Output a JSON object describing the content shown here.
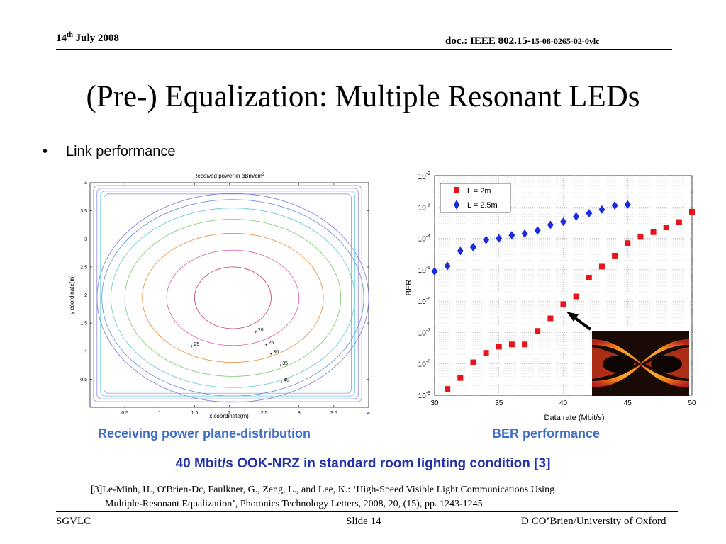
{
  "header": {
    "date_day": "14",
    "date_suffix": "th",
    "date_rest": " July 2008",
    "doc_prefix": "doc.: IEEE 802.15-",
    "doc_number": "15-08-0265-02-0vlc"
  },
  "slide": {
    "title": "(Pre-) Equalization: Multiple Resonant LEDs",
    "bullet_symbol": "•",
    "bullet_text": "Link performance"
  },
  "captions": {
    "left": "Receiving power plane-distribution",
    "right": "BER performance",
    "subtitle": "40 Mbit/s OOK-NRZ in standard room lighting condition [3]"
  },
  "reference": {
    "line1": "[3]Le-Minh, H., O'Brien-Dc, Faulkner, G., Zeng, L., and Lee, K.: ‘High-Speed Visible Light Communications Using",
    "line2": "Multiple-Resonant Equalization’, Photonics Technology Letters, 2008, 20, (15), pp. 1243-1245"
  },
  "footer": {
    "left": "SGVLC",
    "center": "Slide 14",
    "right": "D CO’Brien/University of Oxford"
  },
  "colors": {
    "caption": "#3d6ec9",
    "subtitle": "#2233aa",
    "series_2m": "#e8141b",
    "series_25m": "#1a2be0"
  },
  "icons": [
    "arrow-icon",
    "eye-diagram-image"
  ],
  "chart_data": [
    {
      "type": "contour",
      "title": "Received power in dBm/cm",
      "title_sup": "2",
      "xlabel": "x coordinate(m)",
      "ylabel": "y coordinate(m)",
      "xlim": [
        0,
        4
      ],
      "ylim": [
        0,
        4
      ],
      "xticks": [
        "0.5",
        "1",
        "1.5",
        "2",
        "2.5",
        "3",
        "3.5",
        "4"
      ],
      "yticks": [
        "0.5",
        "1",
        "1.5",
        "2",
        "2.5",
        "3",
        "3.5",
        "4"
      ],
      "contour_labels": [
        {
          "x": 2.4,
          "y": 1.35,
          "text": "20"
        },
        {
          "x": 1.48,
          "y": 1.1,
          "text": "25"
        },
        {
          "x": 2.55,
          "y": 1.12,
          "text": "25"
        },
        {
          "x": 2.62,
          "y": 0.96,
          "text": "30"
        },
        {
          "x": 2.75,
          "y": 0.76,
          "text": "35"
        },
        {
          "x": 2.77,
          "y": 0.46,
          "text": "40"
        }
      ]
    },
    {
      "type": "scatter",
      "xlabel": "Data rate (Mbit/s)",
      "ylabel": "BER",
      "xlim": [
        30,
        50
      ],
      "ylim_exp": [
        -9,
        -2
      ],
      "yscale": "log",
      "xticks": [
        "30",
        "35",
        "40",
        "45",
        "50"
      ],
      "ytick_exponents": [
        "-9",
        "-8",
        "-7",
        "-6",
        "-5",
        "-4",
        "-3",
        "-2"
      ],
      "ytick_base": "10",
      "legend_position": "top-left",
      "grid": true,
      "series": [
        {
          "name": "L = 2m",
          "marker": "square",
          "x": [
            31,
            32,
            33,
            34,
            35,
            36,
            37,
            38,
            39,
            40,
            41,
            42,
            43,
            44,
            45,
            46,
            47,
            48,
            49,
            50
          ],
          "log10_y": [
            -8.8,
            -8.45,
            -7.95,
            -7.65,
            -7.45,
            -7.38,
            -7.38,
            -6.95,
            -6.55,
            -6.1,
            -5.85,
            -5.25,
            -4.9,
            -4.55,
            -4.15,
            -3.95,
            -3.8,
            -3.65,
            -3.48,
            -3.15
          ]
        },
        {
          "name": "L = 2.5m",
          "marker": "diamond",
          "x": [
            30,
            31,
            32,
            33,
            34,
            35,
            36,
            37,
            38,
            39,
            40,
            41,
            42,
            43,
            44,
            45
          ],
          "log10_y": [
            -5.05,
            -4.88,
            -4.4,
            -4.28,
            -4.05,
            -4.0,
            -3.9,
            -3.85,
            -3.75,
            -3.57,
            -3.47,
            -3.3,
            -3.2,
            -3.08,
            -2.95,
            -2.92
          ]
        }
      ]
    }
  ]
}
